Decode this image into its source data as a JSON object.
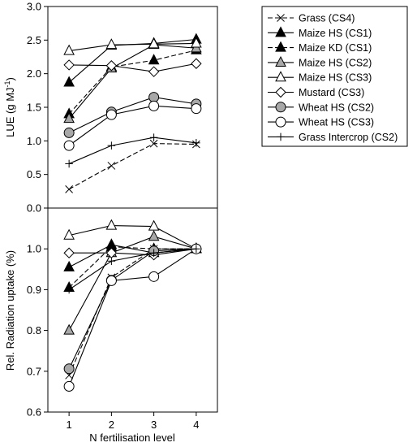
{
  "chart_data": [
    {
      "type": "line",
      "ylabel": "LUE (g MJ",
      "ylabel_sup": "-1",
      "ylabel_end": ")",
      "x": [
        1,
        2,
        3,
        4
      ],
      "xlim": [
        0.5,
        4.5
      ],
      "ylim": [
        0,
        3
      ],
      "yticks": [
        "0.0",
        "0.5",
        "1.0",
        "1.5",
        "2.0",
        "2.5",
        "3.0"
      ],
      "grid": false,
      "series": [
        {
          "name": "Grass (CS4)",
          "marker": "x",
          "line": "dash",
          "values": [
            0.28,
            0.63,
            0.96,
            0.95
          ]
        },
        {
          "name": "Maize HS (CS1)",
          "marker": "triangle",
          "fill": "#000000",
          "line": "solid",
          "values": [
            1.87,
            2.42,
            2.45,
            2.51
          ]
        },
        {
          "name": "Maize KD (CS1)",
          "marker": "triangle",
          "fill": "#000000",
          "line": "dash",
          "values": [
            1.4,
            2.1,
            2.2,
            2.35
          ]
        },
        {
          "name": "Maize HS (CS2)",
          "marker": "triangle",
          "fill": "#a8a8a8",
          "line": "solid",
          "values": [
            1.33,
            2.08,
            2.43,
            2.38
          ]
        },
        {
          "name": "Maize HS (CS3)",
          "marker": "triangle",
          "fill": "#ffffff",
          "line": "solid",
          "values": [
            2.34,
            2.43,
            2.44,
            2.45
          ]
        },
        {
          "name": "Mustard (CS3)",
          "marker": "diamond",
          "fill": "#ffffff",
          "line": "solid",
          "values": [
            2.13,
            2.12,
            2.03,
            2.15
          ]
        },
        {
          "name": "Wheat HS (CS2)",
          "marker": "circle",
          "fill": "#a8a8a8",
          "line": "solid",
          "values": [
            1.12,
            1.43,
            1.65,
            1.55
          ]
        },
        {
          "name": "Wheat HS (CS3)",
          "marker": "circle",
          "fill": "#ffffff",
          "line": "solid",
          "values": [
            0.93,
            1.39,
            1.52,
            1.48
          ]
        },
        {
          "name": "Grass Intercrop (CS2)",
          "marker": "plus",
          "line": "solid",
          "values": [
            0.66,
            0.93,
            1.05,
            0.97
          ]
        }
      ]
    },
    {
      "type": "line",
      "ylabel": "Rel. Radiation uptake (%)",
      "xlabel": "N fertilisation level",
      "x": [
        1,
        2,
        3,
        4
      ],
      "xticks": [
        "1",
        "2",
        "3",
        "4"
      ],
      "xlim": [
        0.5,
        4.5
      ],
      "ylim": [
        0.6,
        1.1
      ],
      "yticks": [
        "0.6",
        "0.7",
        "0.8",
        "0.9",
        "1.0"
      ],
      "grid": false,
      "series": [
        {
          "name": "Grass (CS4)",
          "marker": "x",
          "line": "dash",
          "values": [
            0.69,
            0.93,
            1.0,
            1.0
          ]
        },
        {
          "name": "Maize HS (CS1)",
          "marker": "triangle",
          "fill": "#000000",
          "line": "solid",
          "values": [
            0.955,
            1.01,
            0.99,
            1.0
          ]
        },
        {
          "name": "Maize KD (CS1)",
          "marker": "triangle",
          "fill": "#000000",
          "line": "dash",
          "values": [
            0.905,
            1.005,
            1.0,
            1.0
          ]
        },
        {
          "name": "Maize HS (CS2)",
          "marker": "triangle",
          "fill": "#a8a8a8",
          "line": "solid",
          "values": [
            0.8,
            0.99,
            1.03,
            1.0
          ]
        },
        {
          "name": "Maize HS (CS3)",
          "marker": "triangle",
          "fill": "#ffffff",
          "line": "solid",
          "values": [
            1.033,
            1.057,
            1.055,
            1.0
          ]
        },
        {
          "name": "Mustard (CS3)",
          "marker": "diamond",
          "fill": "#ffffff",
          "line": "solid",
          "values": [
            0.99,
            0.99,
            0.985,
            1.0
          ]
        },
        {
          "name": "Wheat HS (CS2)",
          "marker": "circle",
          "fill": "#a8a8a8",
          "line": "solid",
          "values": [
            0.706,
            0.923,
            0.995,
            1.0
          ]
        },
        {
          "name": "Wheat HS (CS3)",
          "marker": "circle",
          "fill": "#ffffff",
          "line": "solid",
          "values": [
            0.663,
            0.922,
            0.932,
            1.0
          ]
        },
        {
          "name": "Grass Intercrop (CS2)",
          "marker": "plus",
          "line": "solid",
          "values": [
            0.9,
            0.97,
            0.99,
            1.0
          ]
        }
      ]
    }
  ],
  "legend": {
    "placement": "right",
    "entries": [
      {
        "label": "Grass (CS4)",
        "marker": "x",
        "line": "dash"
      },
      {
        "label": "Maize HS (CS1)",
        "marker": "triangle",
        "fill": "#000000",
        "line": "solid"
      },
      {
        "label": "Maize KD (CS1)",
        "marker": "triangle",
        "fill": "#000000",
        "line": "dash"
      },
      {
        "label": "Maize HS (CS2)",
        "marker": "triangle",
        "fill": "#a8a8a8",
        "line": "solid"
      },
      {
        "label": "Maize HS (CS3)",
        "marker": "triangle",
        "fill": "#ffffff",
        "line": "solid"
      },
      {
        "label": "Mustard (CS3)",
        "marker": "diamond",
        "fill": "#ffffff",
        "line": "solid"
      },
      {
        "label": "Wheat HS (CS2)",
        "marker": "circle",
        "fill": "#a8a8a8",
        "line": "solid"
      },
      {
        "label": "Wheat HS (CS3)",
        "marker": "circle",
        "fill": "#ffffff",
        "line": "solid"
      },
      {
        "label": "Grass Intercrop (CS2)",
        "marker": "plus",
        "line": "solid"
      }
    ]
  }
}
